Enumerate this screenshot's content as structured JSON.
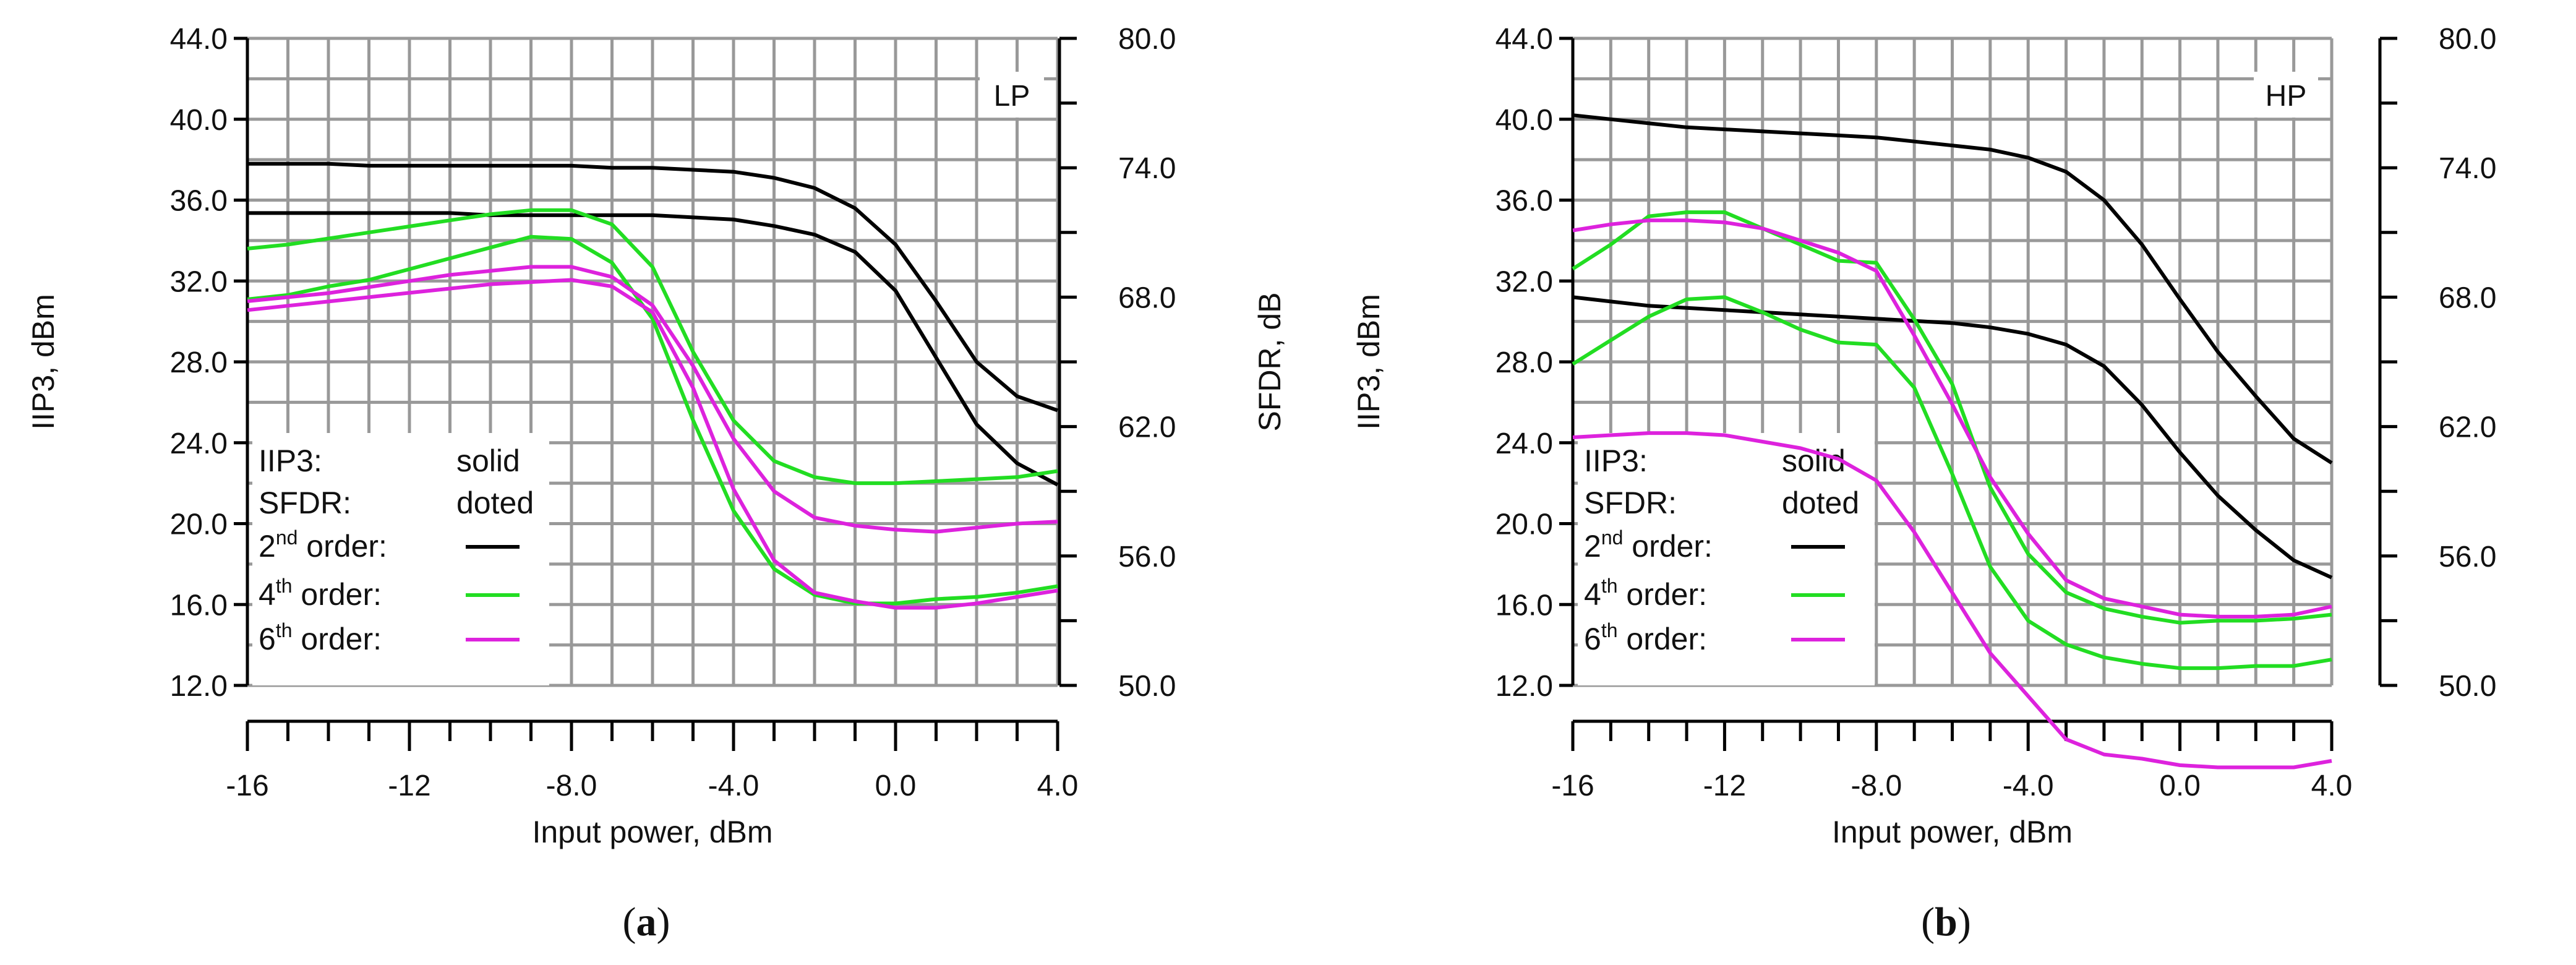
{
  "colors": {
    "second_order": "#000000",
    "fourth_order": "#22dd22",
    "sixth_order": "#dd22dd",
    "grid": "#999999",
    "axis": "#000000",
    "background": "#ffffff"
  },
  "chart_data": [
    {
      "type": "line",
      "panel_label": "LP",
      "caption_letter": "a",
      "xlabel": "Input power, dBm",
      "ylabel": "IIP3, dBm",
      "y2label": "SFDR, dB",
      "xlim": [
        -16,
        4
      ],
      "ylim": [
        12,
        44
      ],
      "y2lim": [
        50,
        80
      ],
      "x_ticks": [
        "-16",
        "-12",
        "-8.0",
        "-4.0",
        "0.0",
        "4.0"
      ],
      "y_ticks": [
        "12.0",
        "16.0",
        "20.0",
        "24.0",
        "28.0",
        "32.0",
        "36.0",
        "40.0",
        "44.0"
      ],
      "y2_ticks": [
        "50.0",
        "56.0",
        "62.0",
        "68.0",
        "74.0",
        "80.0"
      ],
      "grid": true,
      "legend": {
        "placement": "bottom-left",
        "rows": [
          {
            "label": "IIP3:",
            "value": "solid"
          },
          {
            "label": "SFDR:",
            "value": "doted"
          },
          {
            "label_main": "2",
            "label_sup": "nd",
            "label_rest": " order:",
            "color_key": "second_order"
          },
          {
            "label_main": "4",
            "label_sup": "th",
            "label_rest": " order:",
            "color_key": "fourth_order"
          },
          {
            "label_main": "6",
            "label_sup": "th",
            "label_rest": " order:",
            "color_key": "sixth_order"
          }
        ]
      },
      "x": [
        -16,
        -15,
        -14,
        -13,
        -12,
        -11,
        -10,
        -9,
        -8,
        -7,
        -6,
        -5,
        -4,
        -3,
        -2,
        -1,
        0,
        1,
        2,
        3,
        4
      ],
      "series": [
        {
          "order": "2nd",
          "metric": "IIP3",
          "color_key": "second_order",
          "values": [
            37.8,
            37.8,
            37.8,
            37.7,
            37.7,
            37.7,
            37.7,
            37.7,
            37.7,
            37.6,
            37.6,
            37.5,
            37.4,
            37.1,
            36.6,
            35.6,
            33.8,
            31.0,
            28.0,
            26.3,
            25.6
          ]
        },
        {
          "order": "2nd",
          "metric": "SFDR",
          "color_key": "second_order",
          "values": [
            71.9,
            71.9,
            71.9,
            71.9,
            71.9,
            71.9,
            71.8,
            71.8,
            71.8,
            71.8,
            71.8,
            71.7,
            71.6,
            71.3,
            70.9,
            70.1,
            68.3,
            65.2,
            62.1,
            60.3,
            59.3
          ]
        },
        {
          "order": "4th",
          "metric": "IIP3",
          "color_key": "fourth_order",
          "values": [
            33.6,
            33.8,
            34.1,
            34.4,
            34.7,
            35.0,
            35.3,
            35.5,
            35.5,
            34.8,
            32.7,
            28.5,
            25.1,
            23.1,
            22.3,
            22.0,
            22.0,
            22.1,
            22.2,
            22.3,
            22.6
          ]
        },
        {
          "order": "4th",
          "metric": "SFDR",
          "color_key": "fourth_order",
          "values": [
            67.9,
            68.1,
            68.5,
            68.8,
            69.3,
            69.8,
            70.3,
            70.8,
            70.7,
            69.6,
            67.0,
            62.3,
            58.1,
            55.4,
            54.2,
            53.8,
            53.8,
            54.0,
            54.1,
            54.3,
            54.6
          ]
        },
        {
          "order": "6th",
          "metric": "IIP3",
          "color_key": "sixth_order",
          "values": [
            31.0,
            31.2,
            31.4,
            31.7,
            32.0,
            32.3,
            32.5,
            32.7,
            32.7,
            32.2,
            30.8,
            27.8,
            24.2,
            21.6,
            20.3,
            19.9,
            19.7,
            19.6,
            19.8,
            20.0,
            20.1
          ]
        },
        {
          "order": "6th",
          "metric": "SFDR",
          "color_key": "sixth_order",
          "values": [
            67.4,
            67.6,
            67.8,
            68.0,
            68.2,
            68.4,
            68.6,
            68.7,
            68.8,
            68.5,
            67.3,
            63.8,
            59.1,
            55.8,
            54.3,
            53.9,
            53.6,
            53.6,
            53.8,
            54.1,
            54.4
          ]
        }
      ]
    },
    {
      "type": "line",
      "panel_label": "HP",
      "caption_letter": "b",
      "xlabel": "Input power, dBm",
      "ylabel": "IIP3, dBm",
      "y2label": "SFDR, dB",
      "xlim": [
        -16,
        4
      ],
      "ylim": [
        12,
        44
      ],
      "y2lim": [
        50,
        80
      ],
      "x_ticks": [
        "-16",
        "-12",
        "-8.0",
        "-4.0",
        "0.0",
        "4.0"
      ],
      "y_ticks": [
        "12.0",
        "16.0",
        "20.0",
        "24.0",
        "28.0",
        "32.0",
        "36.0",
        "40.0",
        "44.0"
      ],
      "y2_ticks": [
        "50.0",
        "56.0",
        "62.0",
        "68.0",
        "74.0",
        "80.0"
      ],
      "grid": true,
      "legend": {
        "placement": "bottom-left",
        "rows": [
          {
            "label": "IIP3:",
            "value": "solid"
          },
          {
            "label": "SFDR:",
            "value": "doted"
          },
          {
            "label_main": "2",
            "label_sup": "nd",
            "label_rest": " order:",
            "color_key": "second_order"
          },
          {
            "label_main": "4",
            "label_sup": "th",
            "label_rest": " order:",
            "color_key": "fourth_order"
          },
          {
            "label_main": "6",
            "label_sup": "th",
            "label_rest": " order:",
            "color_key": "sixth_order"
          }
        ]
      },
      "x": [
        -16,
        -15,
        -14,
        -13,
        -12,
        -11,
        -10,
        -9,
        -8,
        -7,
        -6,
        -5,
        -4,
        -3,
        -2,
        -1,
        0,
        1,
        2,
        3,
        4
      ],
      "series": [
        {
          "order": "2nd",
          "metric": "IIP3",
          "color_key": "second_order",
          "values": [
            40.2,
            40.0,
            39.8,
            39.6,
            39.5,
            39.4,
            39.3,
            39.2,
            39.1,
            38.9,
            38.7,
            38.5,
            38.1,
            37.4,
            36.0,
            33.8,
            31.1,
            28.5,
            26.3,
            24.2,
            23.0
          ]
        },
        {
          "order": "2nd",
          "metric": "SFDR",
          "color_key": "second_order",
          "values": [
            68.0,
            67.8,
            67.6,
            67.5,
            67.4,
            67.3,
            67.2,
            67.1,
            67.0,
            66.9,
            66.8,
            66.6,
            66.3,
            65.8,
            64.8,
            63.0,
            60.8,
            58.8,
            57.2,
            55.8,
            55.0
          ]
        },
        {
          "order": "4th",
          "metric": "IIP3",
          "color_key": "fourth_order",
          "values": [
            32.6,
            33.8,
            35.2,
            35.4,
            35.4,
            34.6,
            33.8,
            33.0,
            32.9,
            30.1,
            26.9,
            21.8,
            18.5,
            16.6,
            15.8,
            15.4,
            15.1,
            15.2,
            15.2,
            15.3,
            15.5
          ]
        },
        {
          "order": "4th",
          "metric": "SFDR",
          "color_key": "fourth_order",
          "values": [
            64.9,
            66.0,
            67.1,
            67.9,
            68.0,
            67.3,
            66.5,
            65.9,
            65.8,
            63.8,
            59.8,
            55.5,
            53.0,
            51.9,
            51.3,
            51.0,
            50.8,
            50.8,
            50.9,
            50.9,
            51.2
          ]
        },
        {
          "order": "6th",
          "metric": "IIP3",
          "color_key": "sixth_order",
          "values": [
            34.5,
            34.8,
            35.0,
            35.0,
            34.9,
            34.6,
            34.0,
            33.4,
            32.5,
            29.3,
            25.9,
            22.3,
            19.5,
            17.2,
            16.3,
            15.9,
            15.5,
            15.4,
            15.4,
            15.5,
            15.9
          ]
        },
        {
          "order": "6th",
          "metric": "SFDR",
          "color_key": "sixth_order",
          "values": [
            61.5,
            61.6,
            61.7,
            61.7,
            61.6,
            61.3,
            61.0,
            60.5,
            59.5,
            57.1,
            54.3,
            51.5,
            49.5,
            47.5,
            46.8,
            46.6,
            46.3,
            46.2,
            46.2,
            46.2,
            46.5
          ]
        }
      ]
    }
  ]
}
